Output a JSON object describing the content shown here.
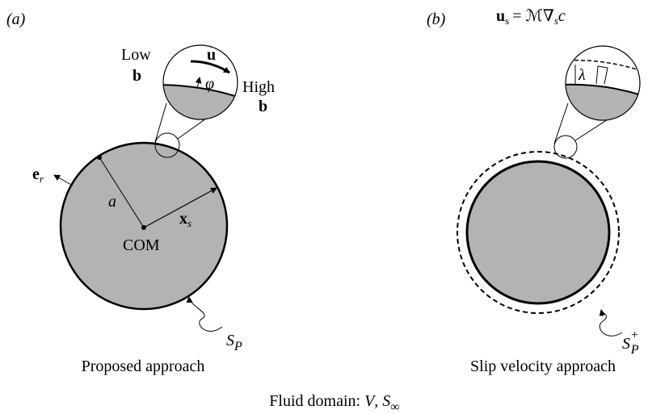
{
  "panel_a": {
    "label": "(a)",
    "caption": "Proposed approach",
    "low": {
      "text": "Low",
      "vector": "b"
    },
    "high": {
      "text": "High",
      "vector": "b"
    },
    "velocity": "u",
    "angle": "φ",
    "normal": {
      "base": "e",
      "sub": "r"
    },
    "radius": "a",
    "position": {
      "base": "x",
      "sub": "s"
    },
    "center": "COM",
    "surface": {
      "base": "S",
      "sub": "P"
    }
  },
  "panel_b": {
    "label": "(b)",
    "caption": "Slip velocity approach",
    "equation": {
      "lhs": "u",
      "lhs_sub": "s",
      "rhs": "= ℳ∇",
      "rhs_sub": "s",
      "rhs_end": "c"
    },
    "thickness": "λ",
    "surface": {
      "base": "S",
      "sub": "P",
      "sup": "+"
    }
  },
  "footer": {
    "text": "Fluid domain: ",
    "volume": "V",
    "separator": ", ",
    "boundary": {
      "base": "S",
      "sub": "∞"
    }
  }
}
